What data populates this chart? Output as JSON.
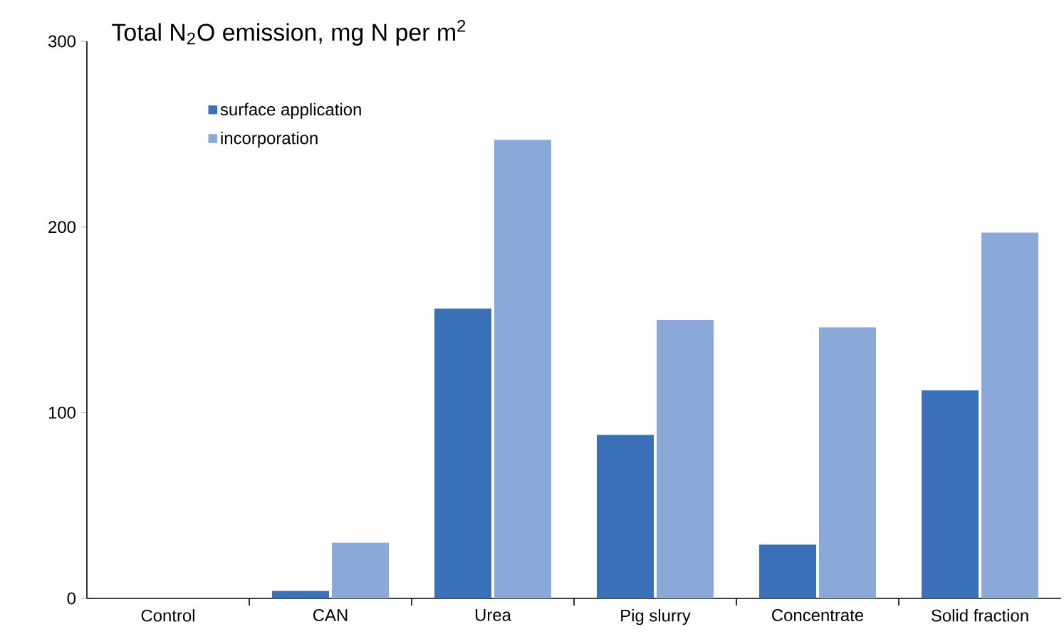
{
  "chart_data": {
    "type": "bar",
    "title": "Total N$_{2}$O emission, mg N per m$^{2}$",
    "categories": [
      "Control",
      "CAN",
      "Urea",
      "Pig slurry",
      "Concentrate",
      "Solid fraction"
    ],
    "series": [
      {
        "name": "surface application",
        "color": "#3a70b8",
        "values": [
          0,
          4,
          156,
          88,
          29,
          112
        ]
      },
      {
        "name": "incorporation",
        "color": "#8aa8d8",
        "values": [
          0,
          30,
          247,
          150,
          146,
          197
        ]
      }
    ],
    "ylim": [
      0,
      300
    ],
    "yticks": [
      0,
      100,
      200,
      300
    ],
    "legend": "top left",
    "grid": false
  }
}
